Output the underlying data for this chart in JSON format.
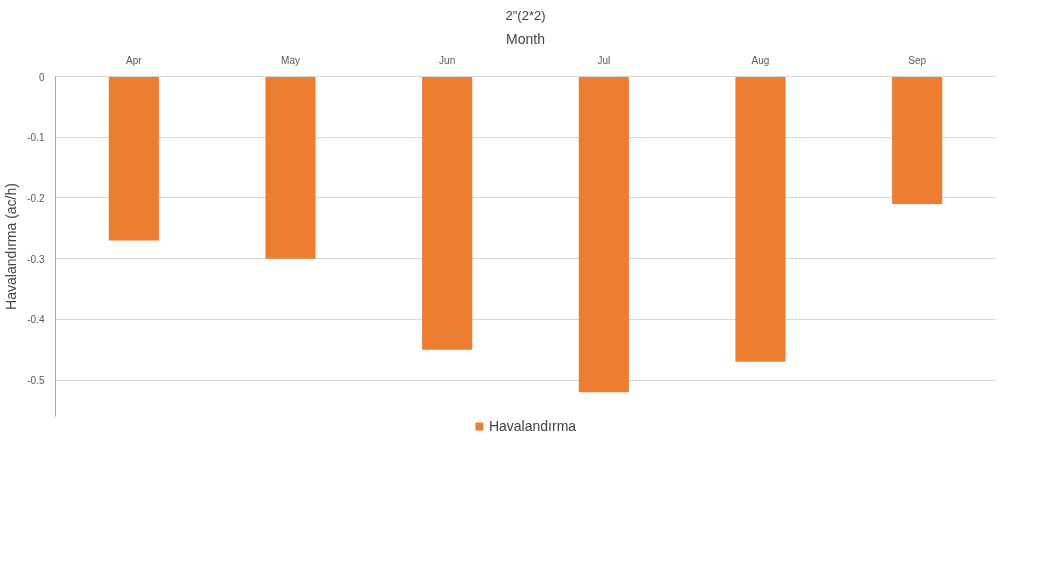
{
  "chart_data": {
    "type": "bar",
    "title": "2\"(2*2)",
    "xlabel": "Month",
    "ylabel": "Havalandırma (ac/h)",
    "categories": [
      "Apr",
      "May",
      "Jun",
      "Jul",
      "Aug",
      "Sep"
    ],
    "series": [
      {
        "name": "Havalandırma",
        "color": "#ed7d31",
        "values": [
          -0.27,
          -0.3,
          -0.45,
          -0.52,
          -0.47,
          -0.21
        ]
      }
    ],
    "ylim": [
      -0.56,
      0
    ],
    "yticks": [
      0,
      -0.1,
      -0.2,
      -0.3,
      -0.4,
      -0.5
    ],
    "grid": "y",
    "legend": "bottom"
  }
}
